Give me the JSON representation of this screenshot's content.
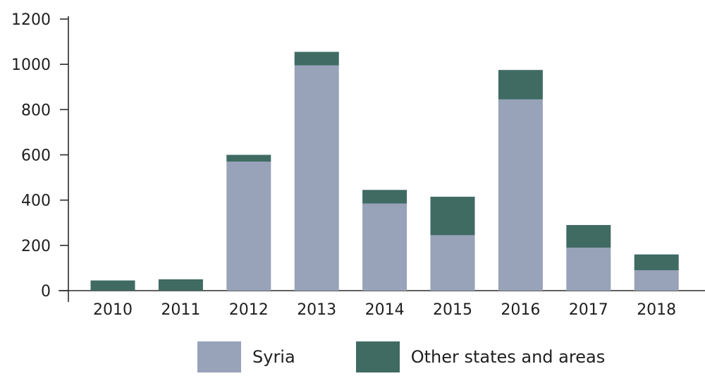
{
  "chart_data": {
    "type": "bar",
    "stacked": true,
    "title": "",
    "xlabel": "",
    "ylabel": "",
    "categories": [
      "2010",
      "2011",
      "2012",
      "2013",
      "2014",
      "2015",
      "2016",
      "2017",
      "2018"
    ],
    "ylim": [
      0,
      1200
    ],
    "yticks": [
      0,
      200,
      400,
      600,
      800,
      1000,
      1200
    ],
    "grid": false,
    "legend_position": "bottom",
    "series": [
      {
        "name": "Syria",
        "color": "#98a2b8",
        "values": [
          0,
          0,
          570,
          995,
          385,
          245,
          845,
          190,
          90
        ]
      },
      {
        "name": "Other states and areas",
        "color": "#3f6b63",
        "values": [
          45,
          50,
          30,
          60,
          60,
          170,
          130,
          100,
          70
        ]
      }
    ]
  }
}
